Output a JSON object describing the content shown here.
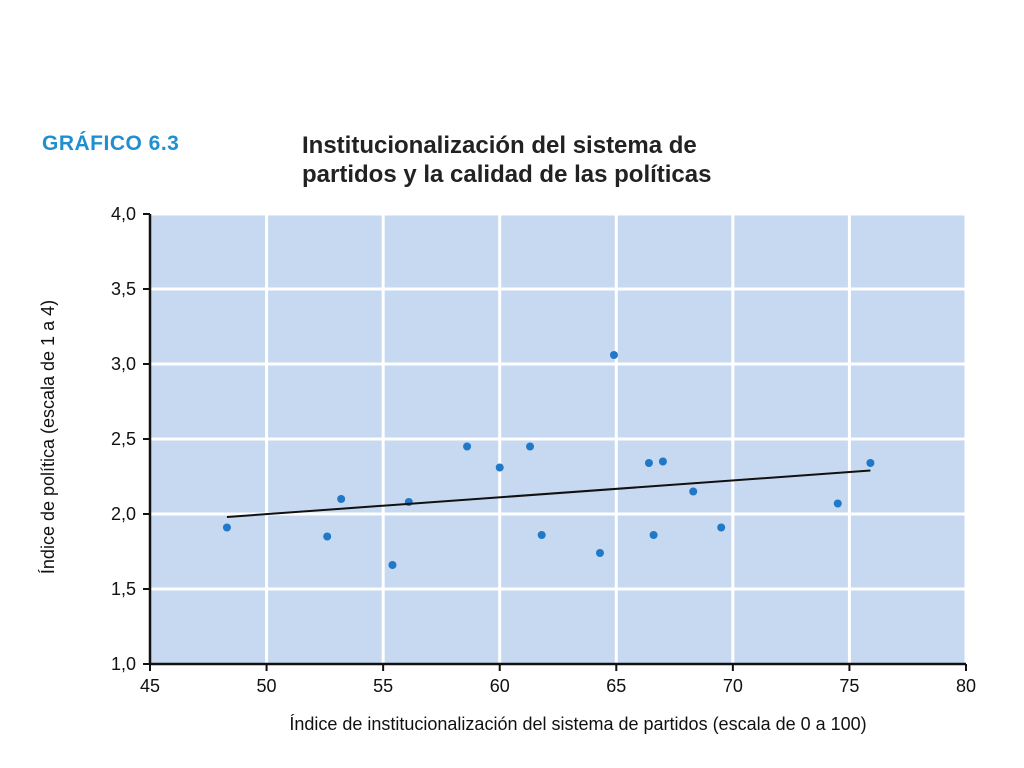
{
  "figure": {
    "number": "GRÁFICO 6.3",
    "title_lines": [
      "Institucionalización del sistema de",
      "partidos y la calidad de las políticas"
    ]
  },
  "colors": {
    "plot_background": "#c6d9f0",
    "grid": "#ffffff",
    "point": "#1f78c8",
    "trend_line": "#111111",
    "figure_number": "#1f8fd0",
    "axis": "#111111"
  },
  "chart_data": {
    "type": "scatter",
    "title": "Institucionalización del sistema de partidos y la calidad de las políticas",
    "xlabel": "Índice de institucionalización del sistema de partidos (escala de 0 a 100)",
    "ylabel": "Índice de política (escala de 1 a 4)",
    "xlim": [
      45,
      80
    ],
    "ylim": [
      1.0,
      4.0
    ],
    "x_ticks": [
      45,
      50,
      55,
      60,
      65,
      70,
      75,
      80
    ],
    "x_tick_labels": [
      "45",
      "50",
      "55",
      "60",
      "65",
      "70",
      "75",
      "80"
    ],
    "y_ticks": [
      1.0,
      1.5,
      2.0,
      2.5,
      3.0,
      3.5,
      4.0
    ],
    "y_tick_labels": [
      "1,0",
      "1,5",
      "2,0",
      "2,5",
      "3,0",
      "3,5",
      "4,0"
    ],
    "grid": true,
    "points": [
      {
        "x": 48.3,
        "y": 1.91
      },
      {
        "x": 52.6,
        "y": 1.85
      },
      {
        "x": 53.2,
        "y": 2.1
      },
      {
        "x": 55.4,
        "y": 1.66
      },
      {
        "x": 56.1,
        "y": 2.08
      },
      {
        "x": 58.6,
        "y": 2.45
      },
      {
        "x": 60.0,
        "y": 2.31
      },
      {
        "x": 61.3,
        "y": 2.45
      },
      {
        "x": 61.8,
        "y": 1.86
      },
      {
        "x": 64.3,
        "y": 1.74
      },
      {
        "x": 64.9,
        "y": 3.06
      },
      {
        "x": 66.4,
        "y": 2.34
      },
      {
        "x": 66.6,
        "y": 1.86
      },
      {
        "x": 67.0,
        "y": 2.35
      },
      {
        "x": 68.3,
        "y": 2.15
      },
      {
        "x": 69.5,
        "y": 1.91
      },
      {
        "x": 74.5,
        "y": 2.07
      },
      {
        "x": 75.9,
        "y": 2.34
      }
    ],
    "trend_line": {
      "type": "linear",
      "x": [
        48.3,
        75.9
      ],
      "y": [
        1.98,
        2.29
      ]
    }
  }
}
